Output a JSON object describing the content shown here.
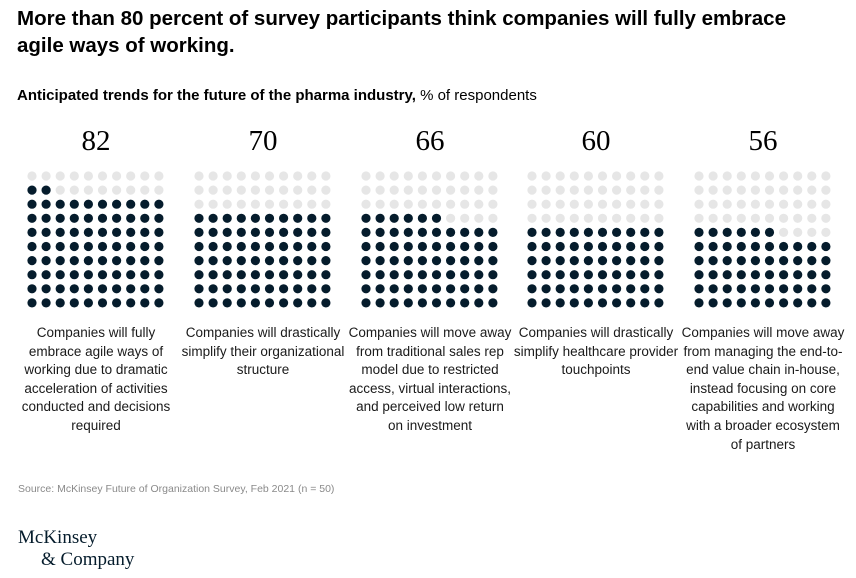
{
  "headline": "More than 80 percent of survey participants think companies will fully embrace agile ways of working.",
  "subtitle": {
    "bold": "Anticipated trends for the future of the pharma industry,",
    "normal": " % of respondents"
  },
  "chart_data": {
    "type": "waffle",
    "grid": {
      "rows": 10,
      "cols": 10
    },
    "fill_order": "bottom-up, left-to-right within a row",
    "colors": {
      "filled": "#051c2c",
      "empty": "#e6e6e6"
    },
    "values": [
      82,
      70,
      66,
      60,
      56
    ],
    "value_labels": [
      "82",
      "70",
      "66",
      "60",
      "56"
    ],
    "descriptions": [
      "Companies will fully embrace agile ways of working due to dramatic acceleration of activities conducted and decisions required",
      "Companies will drastically simplify their organizational structure",
      "Companies will move away from traditional sales rep model due to restricted access, virtual interactions, and perceived low return on investment",
      "Companies will drastically simplify healthcare provider touchpoints",
      "Companies will move away from managing the end-to-end value chain in-house, instead focusing on core capabilities and working with a broader ecosystem of partners"
    ]
  },
  "source": "Source: McKinsey Future of Organization Survey, Feb 2021 (n = 50)",
  "logo": {
    "line1": "McKinsey",
    "line2": "& Company"
  }
}
